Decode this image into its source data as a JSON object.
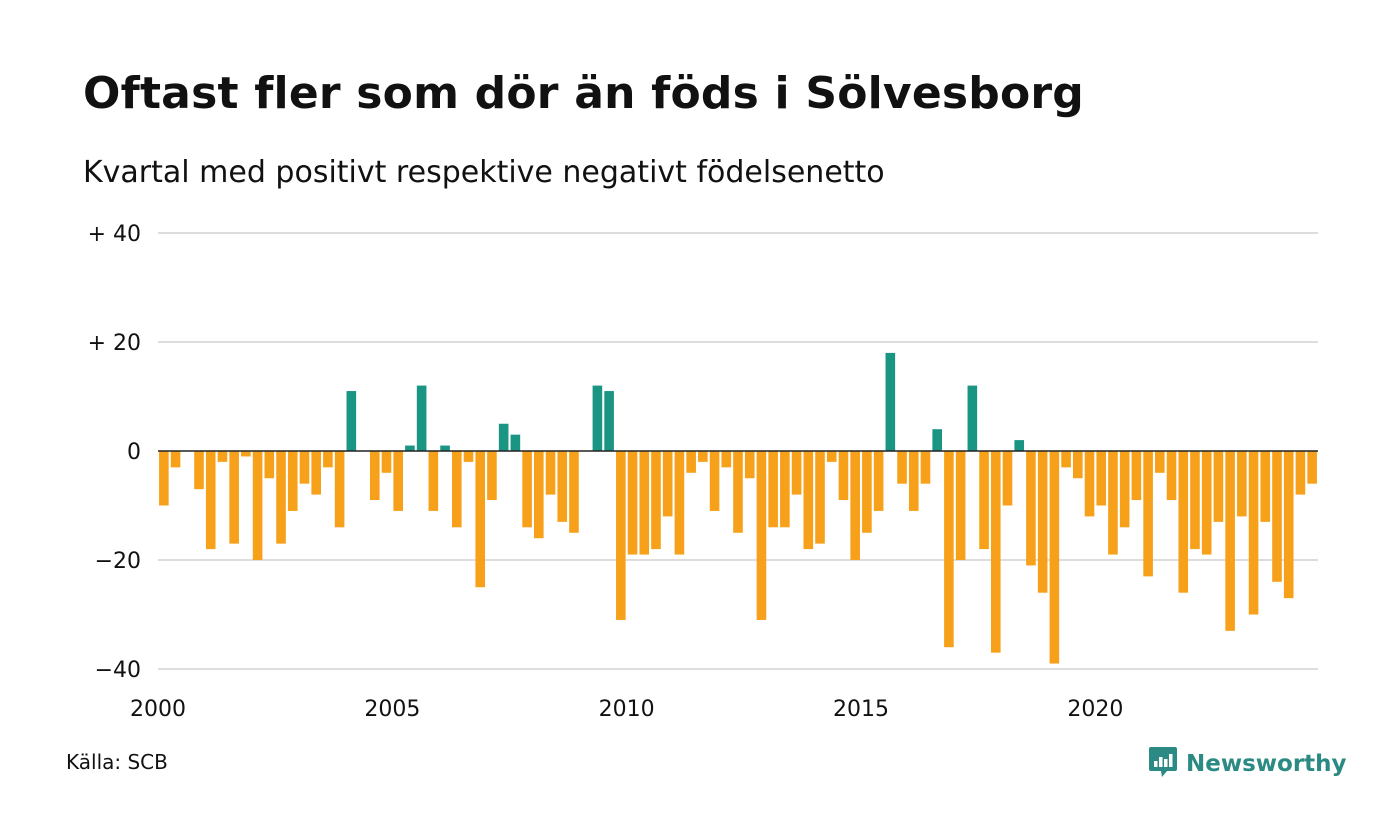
{
  "title": "Oftast fler som dör än föds i Sölvesborg",
  "subtitle": "Kvartal med positivt respektive negativt födelsenetto",
  "source": "Källa: SCB",
  "brand": {
    "name": "Newsworthy",
    "icon": "newsworthy-logo-icon",
    "color": "#2b8a83"
  },
  "colors": {
    "positive": "#1a9584",
    "negative": "#f7a11b",
    "grid": "#dddddd",
    "zero": "#222222"
  },
  "chart_data": {
    "type": "bar",
    "title": "Oftast fler som dör än föds i Sölvesborg",
    "subtitle": "Kvartal med positivt respektive negativt födelsenetto",
    "x_start_year": 2000,
    "periods_per_year": 4,
    "x_ticks": [
      "2000",
      "2005",
      "2010",
      "2015",
      "2020"
    ],
    "y_ticks": [
      {
        "value": 40,
        "label": "+ 40"
      },
      {
        "value": 20,
        "label": "+ 20"
      },
      {
        "value": 0,
        "label": "0"
      },
      {
        "value": -20,
        "label": "−20"
      },
      {
        "value": -40,
        "label": "−40"
      }
    ],
    "ylim": [
      -40,
      40
    ],
    "grid": true,
    "values": [
      -10,
      -3,
      0,
      -7,
      -18,
      -2,
      -17,
      -1,
      -20,
      -5,
      -17,
      -11,
      -6,
      -8,
      -3,
      -14,
      11,
      0,
      -9,
      -4,
      -11,
      1,
      12,
      -11,
      1,
      -14,
      -2,
      -25,
      -9,
      5,
      3,
      -14,
      -16,
      -8,
      -13,
      -15,
      0,
      12,
      11,
      -31,
      -19,
      -19,
      -18,
      -12,
      -19,
      -4,
      -2,
      -11,
      -3,
      -15,
      -5,
      -31,
      -14,
      -14,
      -8,
      -18,
      -17,
      -2,
      -9,
      -20,
      -15,
      -11,
      18,
      -6,
      -11,
      -6,
      4,
      -36,
      -20,
      12,
      -18,
      -37,
      -10,
      2,
      -21,
      -26,
      -39,
      -3,
      -5,
      -12,
      -10,
      -19,
      -14,
      -9,
      -23,
      -4,
      -9,
      -26,
      -18,
      -19,
      -13,
      -33,
      -12,
      -30,
      -13,
      -24,
      -27,
      -8,
      -6
    ]
  }
}
